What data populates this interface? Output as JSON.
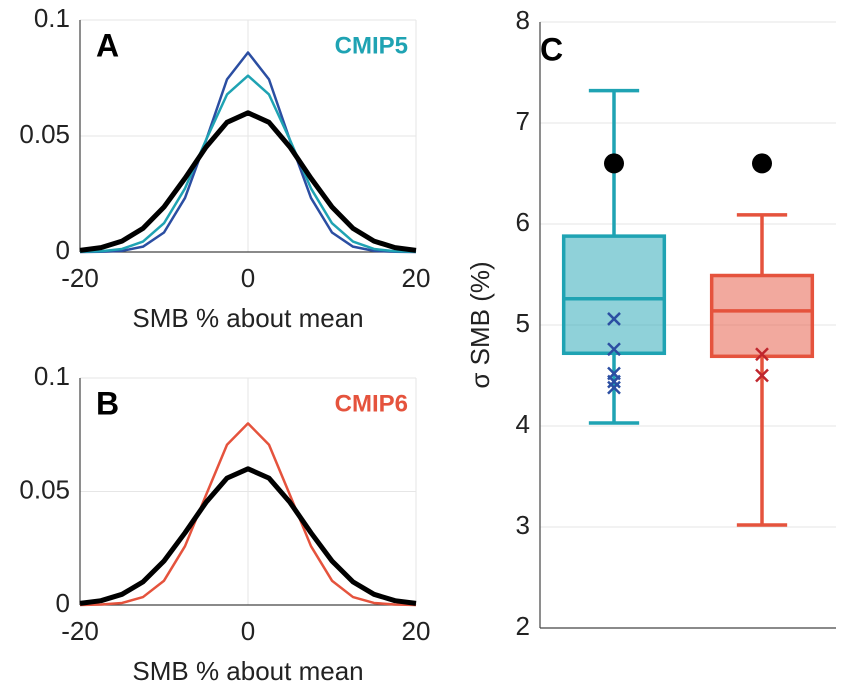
{
  "chart_data": [
    {
      "type": "line",
      "label": "A",
      "annotation": "CMIP5",
      "annotation_color": "#1fa3b3",
      "xlabel": "SMB % about mean",
      "x": [
        -20,
        -17.5,
        -15,
        -12.5,
        -10,
        -7.5,
        -5,
        -2.5,
        0,
        2.5,
        5,
        7.5,
        10,
        12.5,
        15,
        17.5,
        20
      ],
      "series": [
        {
          "color": "#2b4ea2",
          "line_width": 2.5,
          "values": [
            0,
            0.0001,
            0.0005,
            0.0023,
            0.0084,
            0.0233,
            0.0481,
            0.0744,
            0.086,
            0.0744,
            0.0481,
            0.0233,
            0.0084,
            0.0023,
            0.0005,
            0.0001,
            0
          ]
        },
        {
          "color": "#1fa3b3",
          "line_width": 2.5,
          "values": [
            0.0001,
            0.0003,
            0.0013,
            0.0045,
            0.0124,
            0.0274,
            0.0483,
            0.0679,
            0.076,
            0.0679,
            0.0483,
            0.0274,
            0.0124,
            0.0045,
            0.0013,
            0.0003,
            0.0001
          ]
        },
        {
          "color": "#000000",
          "line_width": 5,
          "values": [
            0.0007,
            0.0019,
            0.0047,
            0.0102,
            0.0194,
            0.0318,
            0.0452,
            0.0559,
            0.06,
            0.0559,
            0.0452,
            0.0318,
            0.0194,
            0.0102,
            0.0047,
            0.0019,
            0.0007
          ]
        }
      ],
      "xlim": [
        -20,
        20
      ],
      "ylim": [
        0,
        0.1
      ],
      "xticks": [
        -20,
        0,
        20
      ],
      "yticks": [
        0,
        0.05,
        0.1
      ],
      "grid": true
    },
    {
      "type": "line",
      "label": "B",
      "annotation": "CMIP6",
      "annotation_color": "#e5533d",
      "xlabel": "SMB % about mean",
      "x": [
        -20,
        -17.5,
        -15,
        -12.5,
        -10,
        -7.5,
        -5,
        -2.5,
        0,
        2.5,
        5,
        7.5,
        10,
        12.5,
        15,
        17.5,
        20
      ],
      "series": [
        {
          "color": "#e5533d",
          "line_width": 2.5,
          "values": [
            0,
            0.0002,
            0.0009,
            0.0035,
            0.0107,
            0.0259,
            0.0484,
            0.0706,
            0.08,
            0.0706,
            0.0484,
            0.0259,
            0.0107,
            0.0035,
            0.0009,
            0.0002,
            0
          ]
        },
        {
          "color": "#000000",
          "line_width": 5,
          "values": [
            0.0007,
            0.0019,
            0.0047,
            0.0102,
            0.0194,
            0.0318,
            0.0452,
            0.0559,
            0.06,
            0.0559,
            0.0452,
            0.0318,
            0.0194,
            0.0102,
            0.0047,
            0.0019,
            0.0007
          ]
        }
      ],
      "xlim": [
        -20,
        20
      ],
      "ylim": [
        0,
        0.1
      ],
      "xticks": [
        -20,
        0,
        20
      ],
      "yticks": [
        0,
        0.05,
        0.1
      ],
      "grid": true
    },
    {
      "type": "box",
      "label": "C",
      "ylabel": "σ SMB (%)",
      "categories": [
        null,
        null
      ],
      "boxes": [
        {
          "color": "#1fa3b3",
          "whisker_low": 4.03,
          "q1": 4.72,
          "median": 5.26,
          "q3": 5.88,
          "whisker_high": 7.32,
          "points": [
            5.06,
            4.76,
            4.52,
            4.44,
            4.38
          ],
          "point_color": "#2b4ea2",
          "reference": 6.6
        },
        {
          "color": "#e5533d",
          "whisker_low": 3.02,
          "q1": 4.69,
          "median": 5.14,
          "q3": 5.49,
          "whisker_high": 6.09,
          "points": [
            4.71,
            4.5
          ],
          "point_color": "#c0262d",
          "reference": 6.6
        }
      ],
      "ylim": [
        2,
        8
      ],
      "yticks": [
        2,
        3,
        4,
        5,
        6,
        7,
        8
      ],
      "grid": true
    }
  ]
}
